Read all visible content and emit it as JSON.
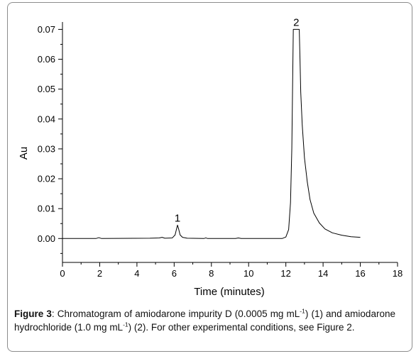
{
  "chart_data": {
    "type": "line",
    "title": "",
    "xlabel": "Time (minutes)",
    "ylabel": "Au",
    "xlim": [
      0,
      18
    ],
    "ylim": [
      -0.008,
      0.072
    ],
    "x_ticks": [
      0,
      2,
      4,
      6,
      8,
      10,
      12,
      14,
      16,
      18
    ],
    "x_tick_labels": [
      "0",
      "2",
      "4",
      "6",
      "8",
      "10",
      "12",
      "14",
      "16",
      "18"
    ],
    "y_ticks": [
      0.0,
      0.01,
      0.02,
      0.03,
      0.04,
      0.05,
      0.06,
      0.07
    ],
    "y_tick_labels": [
      "0.00",
      "0.01",
      "0.02",
      "0.03",
      "0.04",
      "0.05",
      "0.06",
      "0.07"
    ],
    "grid": false,
    "series": [
      {
        "color": "#000000",
        "points": [
          [
            0.0,
            0.0
          ],
          [
            1.8,
            0.0
          ],
          [
            1.95,
            0.0003
          ],
          [
            2.1,
            0.0
          ],
          [
            4.7,
            0.0001
          ],
          [
            5.2,
            0.0002
          ],
          [
            5.35,
            0.0004
          ],
          [
            5.5,
            0.0001
          ],
          [
            5.9,
            0.0002
          ],
          [
            6.05,
            0.0012
          ],
          [
            6.12,
            0.003
          ],
          [
            6.18,
            0.0045
          ],
          [
            6.24,
            0.0032
          ],
          [
            6.32,
            0.0012
          ],
          [
            6.45,
            0.0004
          ],
          [
            6.7,
            0.0001
          ],
          [
            7.6,
            0.0
          ],
          [
            7.7,
            0.0002
          ],
          [
            7.8,
            0.0
          ],
          [
            9.3,
            0.0
          ],
          [
            9.45,
            0.0002
          ],
          [
            9.6,
            0.0
          ],
          [
            11.8,
            0.0
          ],
          [
            12.0,
            0.0005
          ],
          [
            12.15,
            0.003
          ],
          [
            12.25,
            0.012
          ],
          [
            12.32,
            0.03
          ],
          [
            12.37,
            0.055
          ],
          [
            12.4,
            0.07
          ],
          [
            12.45,
            0.07
          ],
          [
            12.5,
            0.07
          ],
          [
            12.6,
            0.07
          ],
          [
            12.72,
            0.07
          ],
          [
            12.76,
            0.06
          ],
          [
            12.8,
            0.049
          ],
          [
            12.88,
            0.038
          ],
          [
            13.0,
            0.027
          ],
          [
            13.15,
            0.019
          ],
          [
            13.3,
            0.013
          ],
          [
            13.5,
            0.0085
          ],
          [
            13.8,
            0.0052
          ],
          [
            14.1,
            0.0032
          ],
          [
            14.5,
            0.0019
          ],
          [
            15.0,
            0.0011
          ],
          [
            15.5,
            0.0006
          ],
          [
            16.0,
            0.0004
          ]
        ]
      }
    ],
    "annotations": [
      {
        "text": "1",
        "x": 6.18,
        "y": 0.0045
      },
      {
        "text": "2",
        "x": 12.56,
        "y": 0.07
      }
    ]
  },
  "caption": {
    "label": "Figure 3",
    "separator": ": ",
    "part1": "Chromatogram of amiodarone impurity D (0.0005 mg mL",
    "sup1": "-1",
    "part2": ") (1) and amiodarone hydrochloride (1.0 mg mL",
    "sup2": "-1",
    "part3": ") (2). For other experimental conditions, see Figure 2."
  }
}
